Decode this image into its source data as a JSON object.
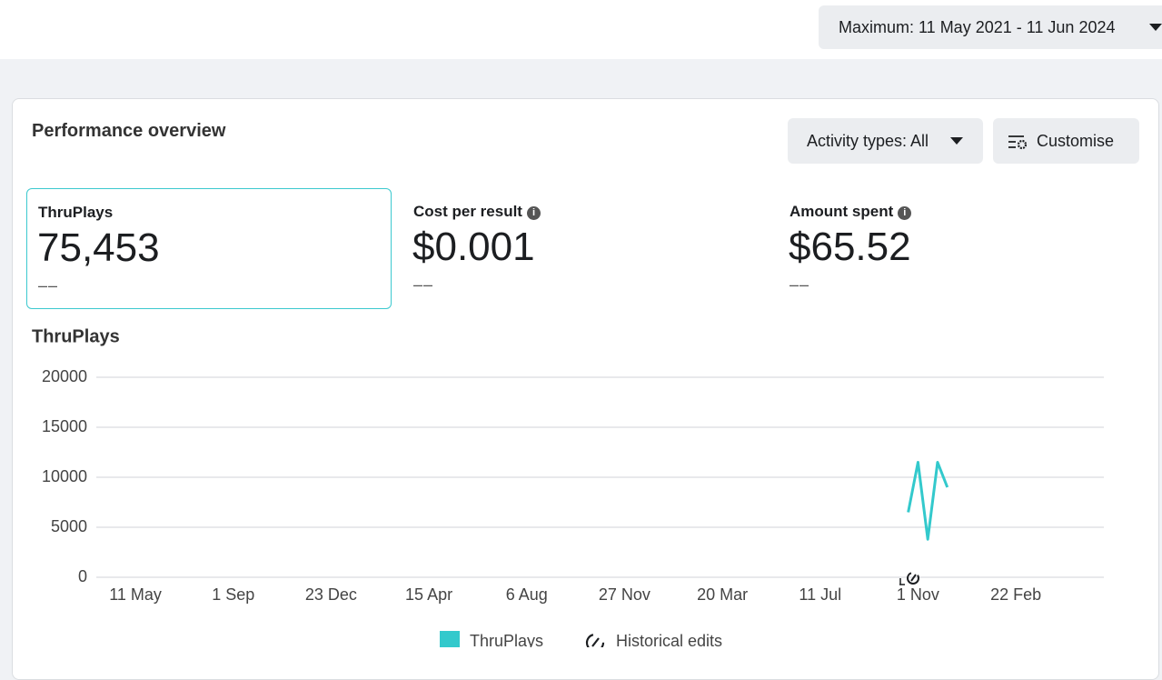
{
  "header": {
    "date_range": "Maximum: 11 May 2021 - 11 Jun 2024"
  },
  "panel": {
    "title": "Performance overview",
    "activity_button": "Activity types: All",
    "customise_button": "Customise"
  },
  "metrics": [
    {
      "label": "ThruPlays",
      "value": "75,453",
      "change": "––"
    },
    {
      "label": "Cost per result",
      "value": "$0.001",
      "change": "––"
    },
    {
      "label": "Amount spent",
      "value": "$65.52",
      "change": "––"
    }
  ],
  "chart_data": {
    "type": "line",
    "title": "ThruPlays",
    "categories": [
      null,
      null,
      null,
      null,
      "11 May",
      null,
      null,
      null,
      null,
      null,
      null,
      null,
      null,
      null,
      "1 Sep",
      null,
      null,
      null,
      null,
      null,
      null,
      null,
      null,
      null,
      "23 Dec",
      null,
      null,
      null,
      null,
      null,
      null,
      null,
      null,
      null,
      "15 Apr",
      null,
      null,
      null,
      null,
      null,
      null,
      null,
      null,
      null,
      "6 Aug",
      null,
      null,
      null,
      null,
      null,
      null,
      null,
      null,
      null,
      "27 Nov",
      null,
      null,
      null,
      null,
      null,
      null,
      null,
      null,
      null,
      "20 Mar",
      null,
      null,
      null,
      null,
      null,
      null,
      null,
      null,
      null,
      "11 Jul",
      null,
      null,
      null,
      null,
      null,
      null,
      null,
      null,
      null,
      "1 Nov",
      null,
      null,
      null,
      null,
      null,
      null,
      null,
      null,
      null,
      "22 Feb",
      null,
      null,
      null,
      null,
      null,
      null,
      null,
      null,
      null
    ],
    "series": [
      {
        "name": "ThruPlays",
        "color": "#33c9cc",
        "values": [
          null,
          null,
          null,
          null,
          null,
          null,
          null,
          null,
          null,
          null,
          null,
          null,
          null,
          null,
          null,
          null,
          null,
          null,
          null,
          null,
          null,
          null,
          null,
          null,
          null,
          null,
          null,
          null,
          null,
          null,
          null,
          null,
          null,
          null,
          null,
          null,
          null,
          null,
          null,
          null,
          null,
          null,
          null,
          null,
          null,
          null,
          null,
          null,
          null,
          null,
          null,
          null,
          null,
          null,
          null,
          null,
          null,
          null,
          null,
          null,
          null,
          null,
          null,
          null,
          null,
          null,
          null,
          null,
          null,
          null,
          null,
          null,
          null,
          null,
          null,
          null,
          null,
          null,
          null,
          null,
          null,
          null,
          null,
          6500,
          11500,
          3800,
          11500,
          9000,
          null,
          null,
          null,
          null,
          null,
          null,
          null,
          null,
          null,
          null,
          null,
          null,
          null,
          null,
          null,
          null
        ]
      }
    ],
    "ylim": [
      0,
      20000
    ],
    "yticks": [
      0,
      5000,
      10000,
      15000,
      20000
    ],
    "grid": true,
    "historical_edits_label": "Historical edits"
  }
}
